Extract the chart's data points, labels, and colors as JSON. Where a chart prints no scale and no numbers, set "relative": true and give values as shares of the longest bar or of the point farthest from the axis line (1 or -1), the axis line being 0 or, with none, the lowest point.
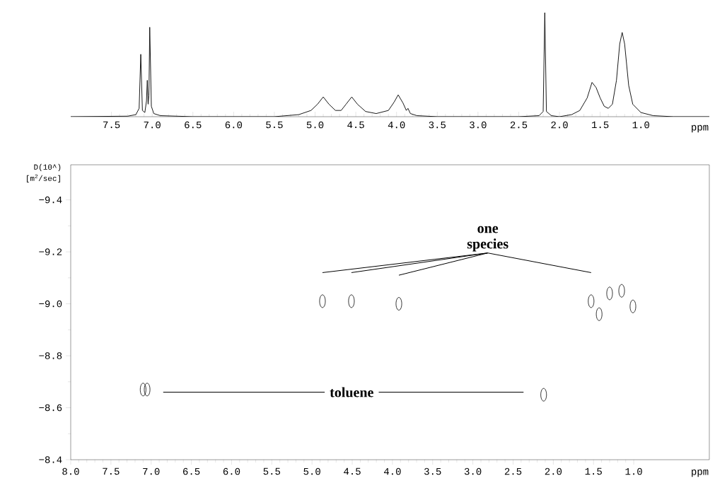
{
  "chart_data": [
    {
      "type": "line",
      "relative": true,
      "color": "#000000",
      "line_style": "solid",
      "marker": "none",
      "xlabel": "ppm",
      "xlim": [
        8.0,
        0.16
      ],
      "xticks": [
        {
          "value": 7.5,
          "label": "7.5"
        },
        {
          "value": 7.0,
          "label": "7.0"
        },
        {
          "value": 6.5,
          "label": "6.5"
        },
        {
          "value": 6.0,
          "label": "6.0"
        },
        {
          "value": 5.5,
          "label": "5.5"
        },
        {
          "value": 5.0,
          "label": "5.0"
        },
        {
          "value": 4.5,
          "label": "4.5"
        },
        {
          "value": 4.0,
          "label": "4.0"
        },
        {
          "value": 3.5,
          "label": "3.5"
        },
        {
          "value": 3.0,
          "label": "3.0"
        },
        {
          "value": 2.5,
          "label": "2.5"
        },
        {
          "value": 2.0,
          "label": "2.0"
        },
        {
          "value": 1.5,
          "label": "1.5"
        },
        {
          "value": 1.0,
          "label": "1.0"
        }
      ],
      "x": [
        8.0,
        7.3,
        7.2,
        7.16,
        7.14,
        7.12,
        7.09,
        7.07,
        7.06,
        7.05,
        7.04,
        7.03,
        7.01,
        6.98,
        6.9,
        6.5,
        5.5,
        5.2,
        5.05,
        4.97,
        4.9,
        4.83,
        4.75,
        4.68,
        4.62,
        4.55,
        4.48,
        4.38,
        4.25,
        4.1,
        4.03,
        3.98,
        3.92,
        3.88,
        3.86,
        3.83,
        3.75,
        3.5,
        2.5,
        2.25,
        2.2,
        2.18,
        2.16,
        2.1,
        2.0,
        1.85,
        1.75,
        1.66,
        1.6,
        1.55,
        1.5,
        1.45,
        1.4,
        1.35,
        1.3,
        1.26,
        1.23,
        1.2,
        1.15,
        1.1,
        1.0,
        0.85,
        0.6,
        0.16
      ],
      "values": [
        0.0,
        0.005,
        0.02,
        0.08,
        0.6,
        0.06,
        0.04,
        0.15,
        0.35,
        0.12,
        0.2,
        0.86,
        0.1,
        0.03,
        0.01,
        0.0,
        0.0,
        0.02,
        0.06,
        0.12,
        0.19,
        0.12,
        0.06,
        0.06,
        0.12,
        0.19,
        0.12,
        0.05,
        0.03,
        0.06,
        0.14,
        0.21,
        0.13,
        0.06,
        0.08,
        0.03,
        0.01,
        0.0,
        0.0,
        0.01,
        0.05,
        1.0,
        0.05,
        0.01,
        0.0,
        0.02,
        0.06,
        0.18,
        0.33,
        0.28,
        0.18,
        0.1,
        0.08,
        0.12,
        0.35,
        0.7,
        0.81,
        0.7,
        0.3,
        0.12,
        0.04,
        0.01,
        0.0,
        0.0
      ]
    },
    {
      "type": "scatter",
      "marker": "circle",
      "xlabel": "ppm",
      "ylabel": "D(10^) [m$^{2}$/sec]",
      "xlim": [
        8.0,
        0.06
      ],
      "ylim": [
        -8.4,
        -9.535
      ],
      "xticks": [
        {
          "value": 8.0,
          "label": "8.0"
        },
        {
          "value": 7.5,
          "label": "7.5"
        },
        {
          "value": 7.0,
          "label": "7.0"
        },
        {
          "value": 6.5,
          "label": "6.5"
        },
        {
          "value": 6.0,
          "label": "6.0"
        },
        {
          "value": 5.5,
          "label": "5.5"
        },
        {
          "value": 5.0,
          "label": "5.0"
        },
        {
          "value": 4.5,
          "label": "4.5"
        },
        {
          "value": 4.0,
          "label": "4.0"
        },
        {
          "value": 3.5,
          "label": "3.5"
        },
        {
          "value": 3.0,
          "label": "3.0"
        },
        {
          "value": 2.5,
          "label": "2.5"
        },
        {
          "value": 2.0,
          "label": "2.0"
        },
        {
          "value": 1.5,
          "label": "1.5"
        },
        {
          "value": 1.0,
          "label": "1.0"
        }
      ],
      "yticks": [
        {
          "value": -9.4,
          "label": "−9.4"
        },
        {
          "value": -9.2,
          "label": "−9.2"
        },
        {
          "value": -9.0,
          "label": "−9.0"
        },
        {
          "value": -8.8,
          "label": "−8.8"
        },
        {
          "value": -8.6,
          "label": "−8.6"
        },
        {
          "value": -8.4,
          "label": "−8.4"
        }
      ],
      "series": [
        {
          "color": "#000000",
          "x": [
            4.87,
            4.51,
            3.92,
            1.53,
            1.43,
            1.3,
            1.15,
            1.01
          ],
          "values": [
            -9.01,
            -9.01,
            -9.0,
            -9.01,
            -8.96,
            -9.04,
            -9.05,
            -8.99
          ]
        },
        {
          "color": "#000000",
          "x": [
            7.1,
            7.05,
            2.12
          ],
          "values": [
            -8.67,
            -8.67,
            -8.65
          ]
        }
      ],
      "annotations": [
        "one species",
        "toluene"
      ]
    }
  ]
}
